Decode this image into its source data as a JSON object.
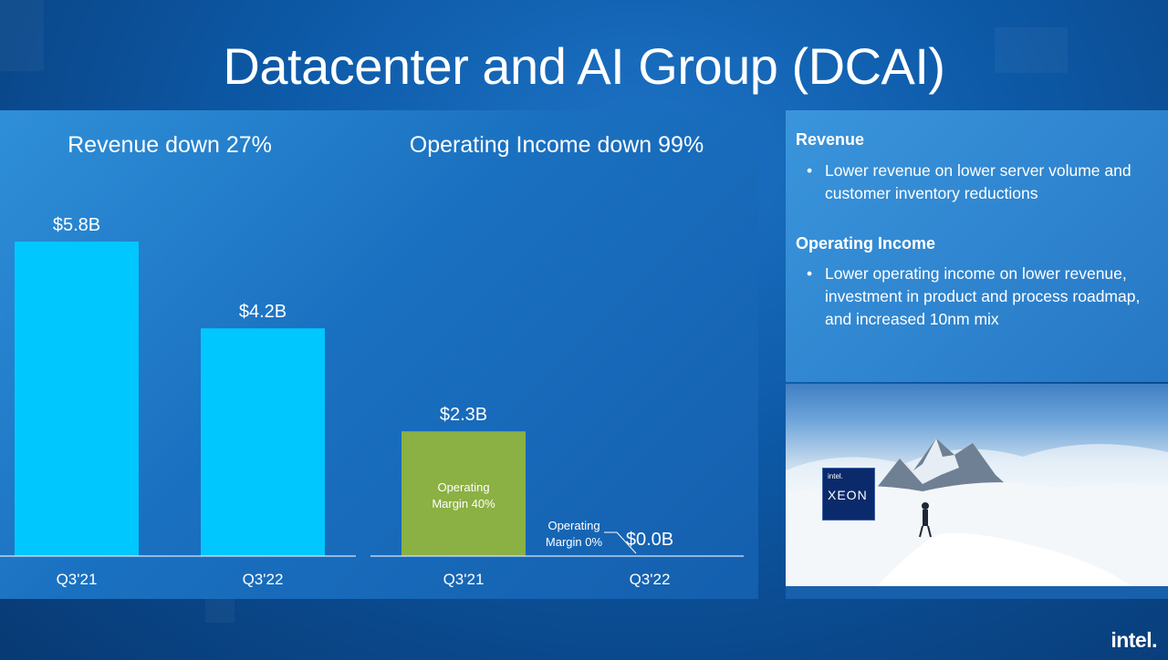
{
  "page": {
    "title": "Datacenter and AI Group (DCAI)"
  },
  "chart_data": [
    {
      "type": "bar",
      "title": "Revenue down 27%",
      "categories": [
        "Q3'21",
        "Q3'22"
      ],
      "values": [
        5.8,
        4.2
      ],
      "value_labels": [
        "$5.8B",
        "$4.2B"
      ],
      "unit": "$B",
      "ylim": [
        0,
        5.8
      ],
      "bar_color": "#00c7fd",
      "grid": false
    },
    {
      "type": "bar",
      "title": "Operating Income down 99%",
      "categories": [
        "Q3'21",
        "Q3'22"
      ],
      "values": [
        2.3,
        0.0
      ],
      "value_labels": [
        "$2.3B",
        "$0.0B"
      ],
      "unit": "$B",
      "ylim": [
        0,
        5.8
      ],
      "bar_color": "#8bb043",
      "grid": false,
      "annotations": [
        {
          "category": "Q3'21",
          "lines": [
            "Operating",
            "Margin 40%"
          ]
        },
        {
          "category": "Q3'22",
          "lines": [
            "Operating",
            "Margin 0%"
          ]
        }
      ]
    }
  ],
  "commentary": {
    "sections": [
      {
        "heading": "Revenue",
        "bullet": "Lower revenue on lower server volume and customer inventory reductions"
      },
      {
        "heading": "Operating Income",
        "bullet": "Lower operating income on lower revenue, investment in product and process roadmap, and increased 10nm mix"
      }
    ]
  },
  "image": {
    "badge_brand": "intel.",
    "badge_product": "XEON"
  },
  "footer": {
    "logo_text": "intel."
  },
  "colors": {
    "revenue_bar": "#00c7fd",
    "income_bar": "#8bb043",
    "axis": "#d9e8f7"
  }
}
